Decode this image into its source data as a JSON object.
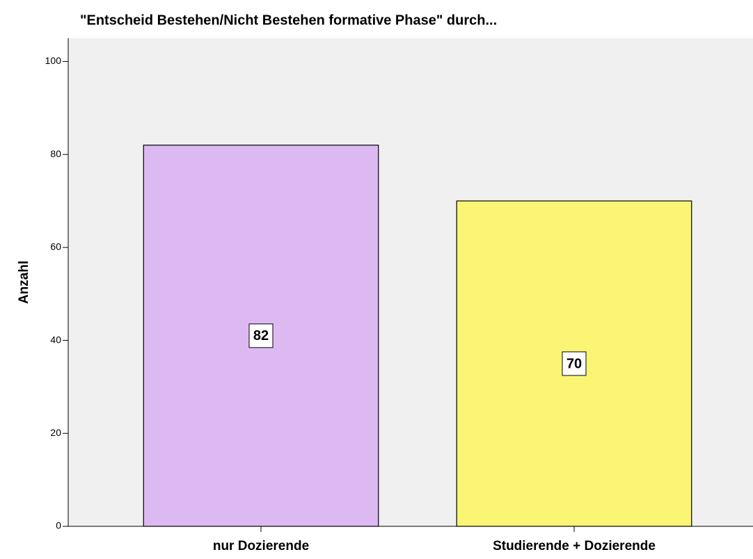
{
  "chart_data": {
    "type": "bar",
    "title": "\"Entscheid Bestehen/Nicht Bestehen formative Phase\" durch...",
    "ylabel": "Anzahl",
    "categories": [
      "nur Dozierende",
      "Studierende + Dozierende"
    ],
    "values": [
      82,
      70
    ],
    "colors": [
      "#ddb9f2",
      "#faf575"
    ],
    "ylim": [
      0,
      105
    ],
    "yticks": [
      0,
      20,
      40,
      60,
      80,
      100
    ]
  }
}
